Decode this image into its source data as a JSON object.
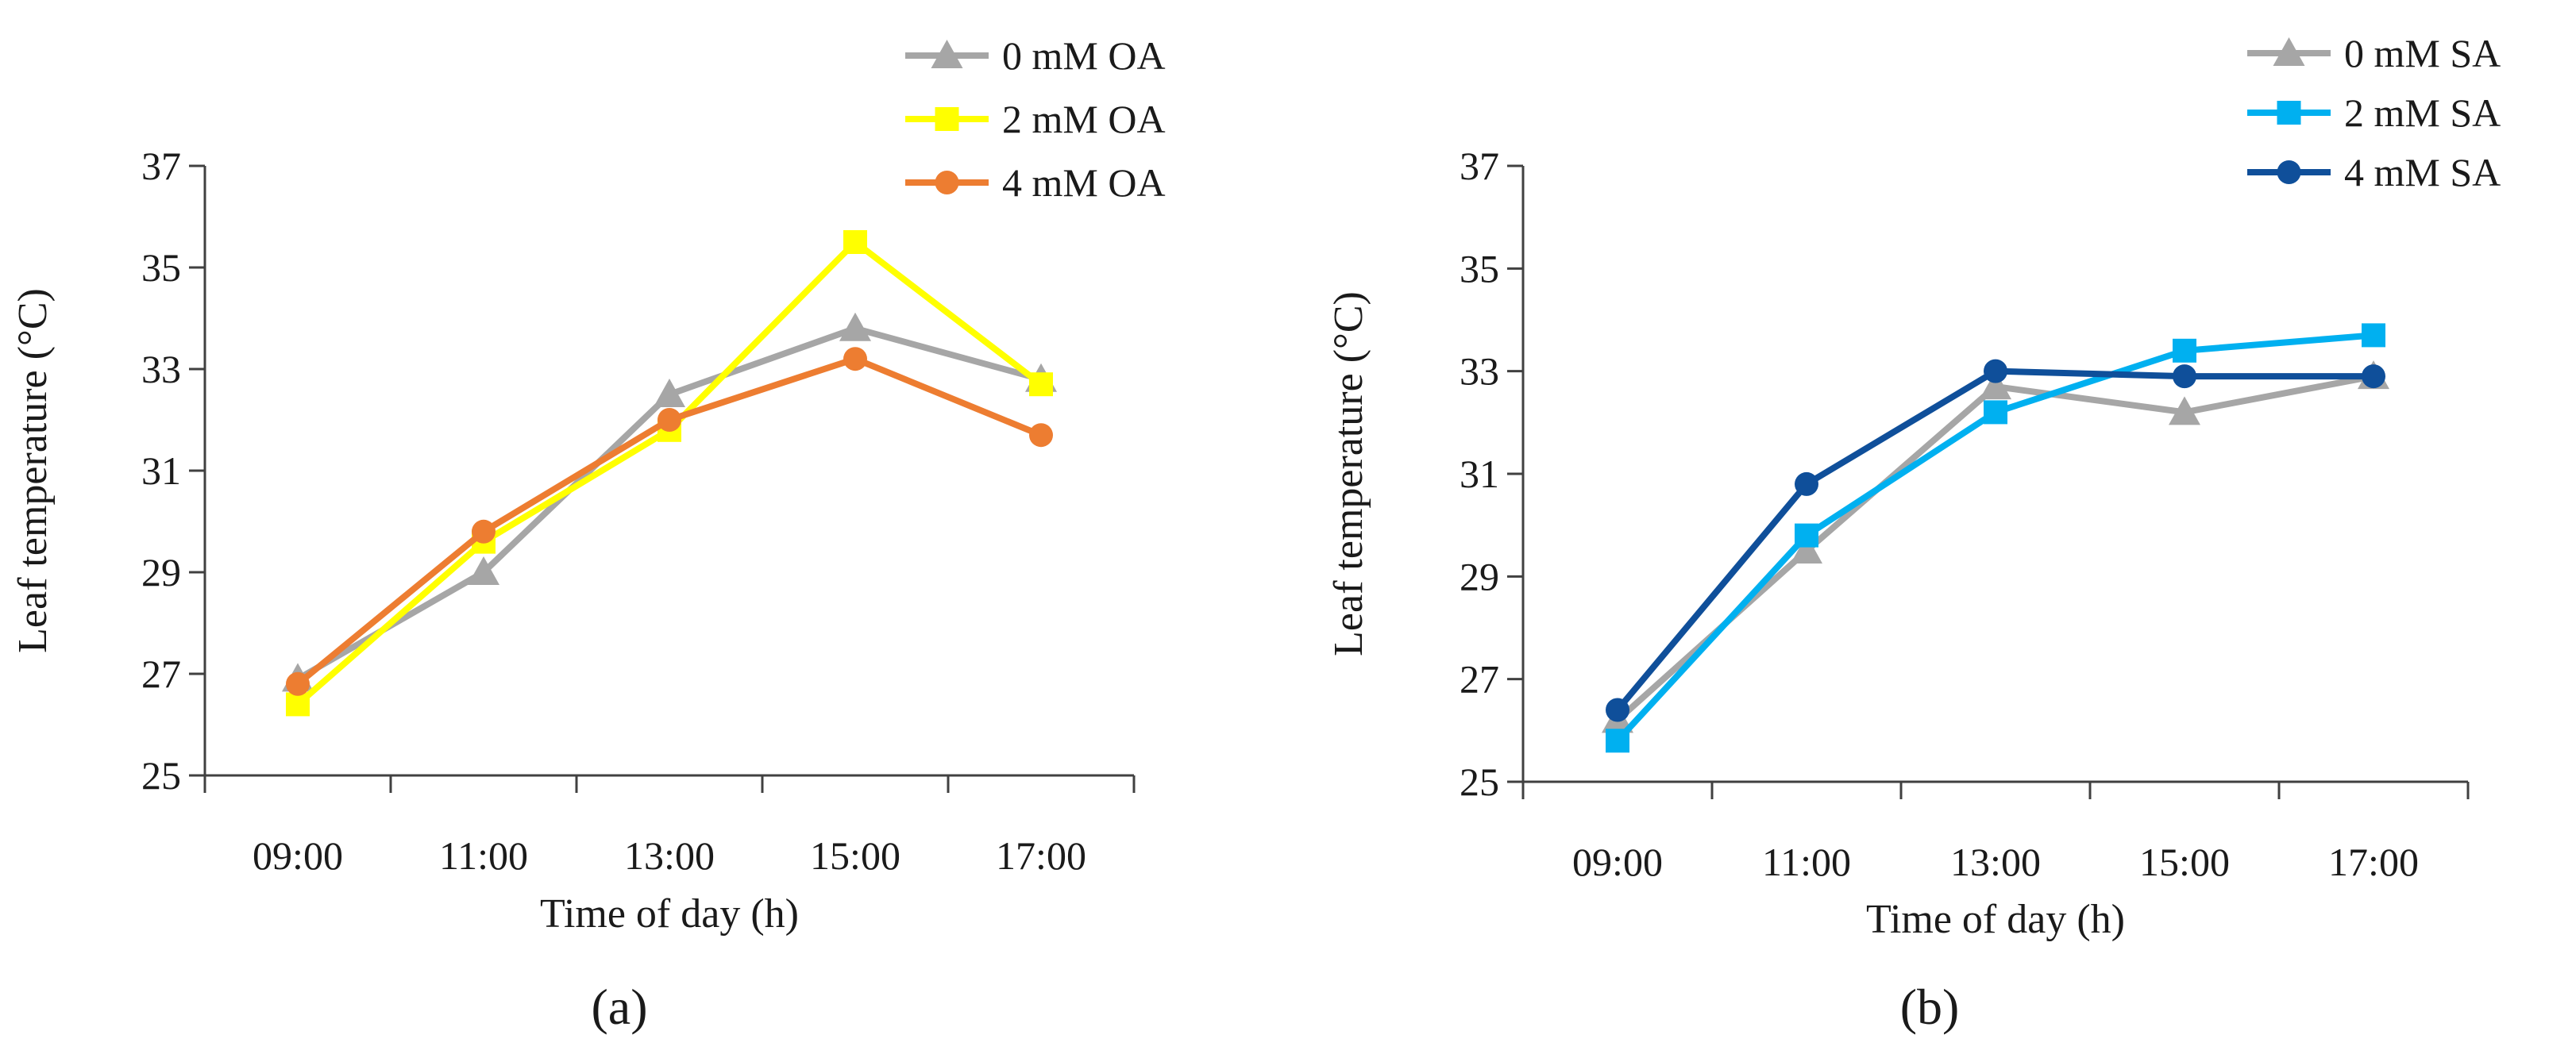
{
  "figure": {
    "panels": [
      "(a)",
      "(b)"
    ]
  },
  "chart_data": [
    {
      "type": "line",
      "panel_label": "(a)",
      "title": "",
      "xlabel": "Time of day (h)",
      "ylabel": "Leaf temperature (°C)",
      "categories": [
        "09:00",
        "11:00",
        "13:00",
        "15:00",
        "17:00"
      ],
      "ylim": [
        25,
        37
      ],
      "yticks": [
        25,
        27,
        29,
        31,
        33,
        35,
        37
      ],
      "grid": false,
      "legend_position": "top-right",
      "series": [
        {
          "name": "0 mM OA",
          "color": "#a6a6a6",
          "marker": "triangle",
          "values": [
            26.9,
            29.0,
            32.5,
            33.8,
            32.8
          ]
        },
        {
          "name": "2 mM OA",
          "color": "#ffff00",
          "marker": "square",
          "values": [
            26.4,
            29.6,
            31.8,
            35.5,
            32.7
          ]
        },
        {
          "name": "4 mM OA",
          "color": "#ed7d31",
          "marker": "circle",
          "values": [
            26.8,
            29.8,
            32.0,
            33.2,
            31.7
          ]
        }
      ]
    },
    {
      "type": "line",
      "panel_label": "(b)",
      "title": "",
      "xlabel": "Time of day (h)",
      "ylabel": "Leaf temperature (°C)",
      "categories": [
        "09:00",
        "11:00",
        "13:00",
        "15:00",
        "17:00"
      ],
      "ylim": [
        25,
        37
      ],
      "yticks": [
        25,
        27,
        29,
        31,
        33,
        35,
        37
      ],
      "grid": false,
      "legend_position": "top-right",
      "series": [
        {
          "name": "0 mM SA",
          "color": "#a6a6a6",
          "marker": "triangle",
          "values": [
            26.2,
            29.5,
            32.7,
            32.2,
            32.9
          ]
        },
        {
          "name": "2 mM SA",
          "color": "#00b0f0",
          "marker": "square",
          "values": [
            25.8,
            29.8,
            32.2,
            33.4,
            33.7
          ]
        },
        {
          "name": "4 mM SA",
          "color": "#0f4f9a",
          "marker": "circle",
          "values": [
            26.4,
            30.8,
            33.0,
            32.9,
            32.9
          ]
        }
      ]
    }
  ]
}
